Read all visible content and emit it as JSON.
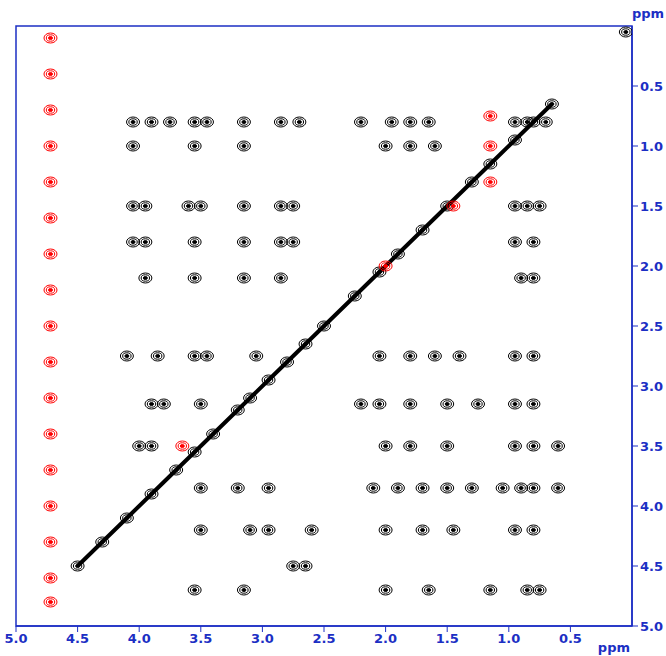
{
  "chart_data": {
    "type": "scatter",
    "x_label": "ppm",
    "y_label": "ppm",
    "xlim": [
      5,
      0
    ],
    "ylim": [
      0,
      5
    ],
    "xticks": [
      {
        "value": 5,
        "label": "5.0"
      },
      4.5,
      {
        "value": 4,
        "label": "4.0"
      },
      3.5,
      {
        "value": 3,
        "label": "3.0"
      },
      2.5,
      {
        "value": 2,
        "label": "2.0"
      },
      1.5,
      {
        "value": 1,
        "label": "1.0"
      },
      0.5
    ],
    "yticks": [
      0.5,
      {
        "value": 1,
        "label": "1.0"
      },
      1.5,
      {
        "value": 2,
        "label": "2.0"
      },
      2.5,
      {
        "value": 3,
        "label": "3.0"
      },
      3.5,
      {
        "value": 4,
        "label": "4.0"
      },
      4.5,
      {
        "value": 5,
        "label": "5.0"
      }
    ],
    "grid": false,
    "series": [
      {
        "color": "#000000",
        "marker": "contour",
        "x": [
          4.05,
          3.9,
          3.75,
          3.55,
          3.45,
          3.15,
          2.85,
          2.7,
          2.2,
          1.95,
          1.8,
          1.65,
          0.95,
          0.85,
          0.7,
          4.05,
          3.55,
          3.15,
          2.0,
          1.8,
          1.6,
          4.05,
          3.95,
          3.6,
          3.5,
          3.15,
          2.85,
          2.75,
          0.95,
          0.85,
          0.75,
          4.05,
          3.95,
          3.55,
          3.15,
          2.85,
          2.75,
          0.95,
          0.8,
          3.95,
          3.55,
          3.15,
          2.85,
          0.9,
          0.8,
          4.1,
          3.85,
          3.55,
          3.45,
          3.05,
          2.05,
          1.8,
          1.6,
          1.4,
          0.95,
          0.8,
          3.9,
          3.8,
          3.5,
          2.2,
          2.05,
          1.8,
          1.5,
          1.25,
          0.95,
          0.8,
          4.0,
          3.9,
          2.0,
          1.8,
          1.5,
          0.95,
          0.8,
          0.6,
          3.5,
          3.2,
          2.95,
          2.1,
          1.9,
          1.7,
          1.5,
          1.3,
          1.05,
          0.9,
          0.8,
          0.6,
          3.5,
          3.1,
          2.95,
          2.6,
          2.0,
          1.7,
          1.45,
          0.95,
          0.8,
          2.75,
          2.65,
          3.55,
          3.15,
          2.0,
          1.65,
          1.15,
          0.85,
          0.75,
          0.05
        ],
        "values": [
          0.8,
          0.8,
          0.8,
          0.8,
          0.8,
          0.8,
          0.8,
          0.8,
          0.8,
          0.8,
          0.8,
          0.8,
          0.8,
          0.8,
          0.8,
          1.0,
          1.0,
          1.0,
          1.0,
          1.0,
          1.0,
          1.5,
          1.5,
          1.5,
          1.5,
          1.5,
          1.5,
          1.5,
          1.5,
          1.5,
          1.5,
          1.8,
          1.8,
          1.8,
          1.8,
          1.8,
          1.8,
          1.8,
          1.8,
          2.1,
          2.1,
          2.1,
          2.1,
          2.1,
          2.1,
          2.75,
          2.75,
          2.75,
          2.75,
          2.75,
          2.75,
          2.75,
          2.75,
          2.75,
          2.75,
          2.75,
          3.15,
          3.15,
          3.15,
          3.15,
          3.15,
          3.15,
          3.15,
          3.15,
          3.15,
          3.15,
          3.5,
          3.5,
          3.5,
          3.5,
          3.5,
          3.5,
          3.5,
          3.5,
          3.85,
          3.85,
          3.85,
          3.85,
          3.85,
          3.85,
          3.85,
          3.85,
          3.85,
          3.85,
          3.85,
          3.85,
          4.2,
          4.2,
          4.2,
          4.2,
          4.2,
          4.2,
          4.2,
          4.2,
          4.2,
          4.5,
          4.5,
          4.7,
          4.7,
          4.7,
          4.7,
          4.7,
          4.7,
          4.7,
          0.05
        ]
      },
      {
        "color": "#000000",
        "marker": "contour",
        "line_style": "solid",
        "x": [
          0.65,
          0.8,
          0.95,
          1.15,
          1.3,
          1.5,
          1.7,
          1.9,
          2.05,
          2.25,
          2.5,
          2.65,
          2.8,
          2.95,
          3.1,
          3.2,
          3.4,
          3.55,
          3.7,
          3.9,
          4.1,
          4.3,
          4.5
        ],
        "values": [
          0.65,
          0.8,
          0.95,
          1.15,
          1.3,
          1.5,
          1.7,
          1.9,
          2.05,
          2.25,
          2.5,
          2.65,
          2.8,
          2.95,
          3.1,
          3.2,
          3.4,
          3.55,
          3.7,
          3.9,
          4.1,
          4.3,
          4.5
        ]
      },
      {
        "color": "#ff0000",
        "marker": "contour",
        "x": [
          4.72,
          4.72,
          4.72,
          4.72,
          4.72,
          4.72,
          4.72,
          4.72,
          4.72,
          4.72,
          4.72,
          4.72,
          4.72,
          4.72,
          4.72,
          4.72,
          4.72,
          1.15,
          1.15,
          1.15,
          1.45,
          3.65,
          2.0
        ],
        "values": [
          0.1,
          0.4,
          0.7,
          1.0,
          1.3,
          1.6,
          1.9,
          2.2,
          2.5,
          2.8,
          3.1,
          3.4,
          3.7,
          4.0,
          4.3,
          4.6,
          4.8,
          0.75,
          1.0,
          1.3,
          1.5,
          3.5,
          2.0
        ]
      }
    ]
  }
}
